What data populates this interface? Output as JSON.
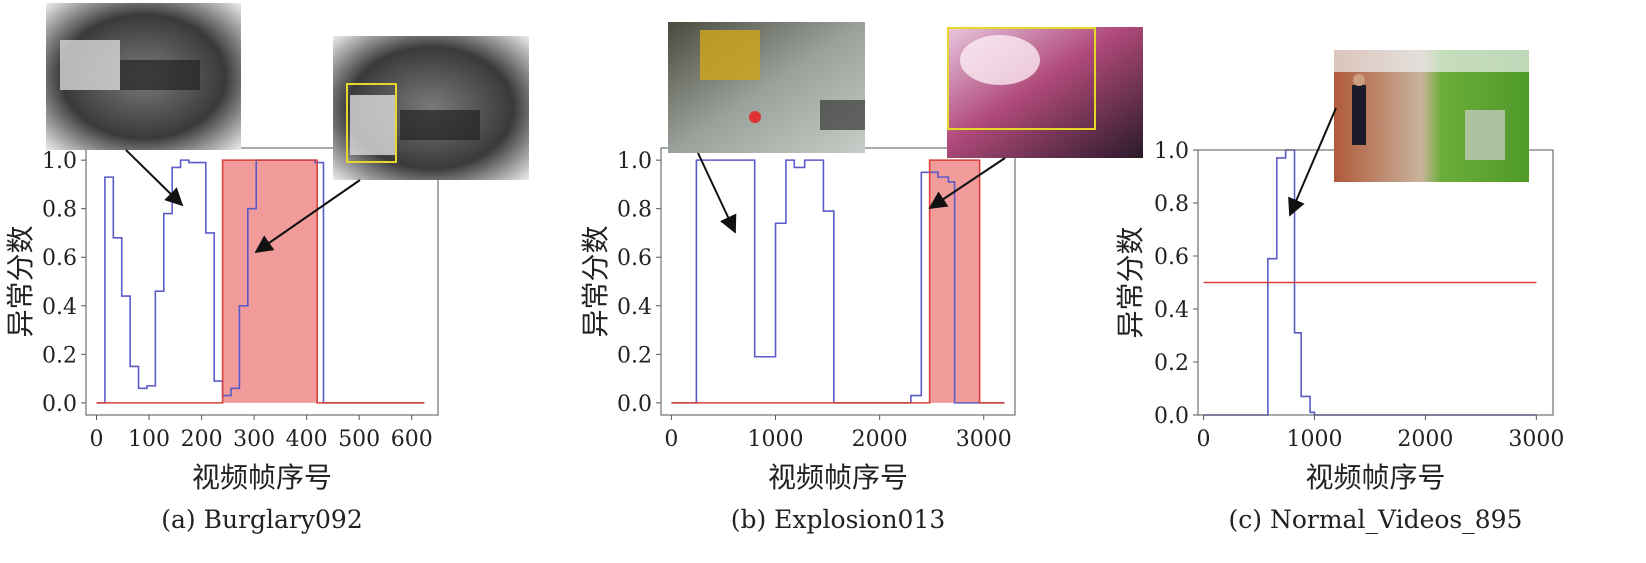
{
  "chart_data": [
    {
      "type": "line",
      "caption": "(a) Burglary092",
      "xlabel": "视频帧序号",
      "ylabel": "异常分数",
      "xlim": [
        -20,
        650
      ],
      "ylim": [
        -0.05,
        1.05
      ],
      "xticks": [
        0,
        100,
        200,
        300,
        400,
        500,
        600
      ],
      "xtick_labels": [
        "0",
        "100",
        "200",
        "300",
        "400",
        "500",
        "600"
      ],
      "yticks": [
        0.0,
        0.2,
        0.4,
        0.6,
        0.8,
        1.0
      ],
      "ytick_labels": [
        "0.0",
        "0.2",
        "0.4",
        "0.6",
        "0.8",
        "1.0"
      ],
      "anomaly_regions": [
        [
          240,
          420
        ]
      ],
      "series": [
        {
          "role": "anomaly score",
          "color": "#5b5bc8",
          "step": true,
          "x": [
            0,
            16,
            32,
            48,
            64,
            80,
            96,
            112,
            128,
            144,
            160,
            176,
            192,
            208,
            224,
            240,
            256,
            272,
            288,
            304,
            320,
            336,
            352,
            368,
            384,
            400,
            416,
            432,
            448,
            464,
            480,
            496,
            512,
            528,
            544,
            560,
            576,
            592,
            608,
            624
          ],
          "y": [
            0.0,
            0.93,
            0.68,
            0.44,
            0.15,
            0.06,
            0.07,
            0.46,
            0.78,
            0.97,
            1.0,
            0.99,
            0.99,
            0.7,
            0.09,
            0.03,
            0.06,
            0.4,
            0.8,
            1.0,
            1.0,
            1.0,
            1.0,
            1.0,
            1.0,
            1.0,
            0.99,
            0.0,
            0.0,
            0.0,
            0.0,
            0.0,
            0.0,
            0.0,
            0.0,
            0.0,
            0.0,
            0.0,
            0.0,
            0.0
          ]
        },
        {
          "role": "ground truth",
          "color": "#d9413b",
          "step": true,
          "x": [
            0,
            240,
            420,
            624
          ],
          "y": [
            0.0,
            1.0,
            0.0,
            0.0
          ]
        }
      ]
    },
    {
      "type": "line",
      "caption": "(b) Explosion013",
      "xlabel": "视频帧序号",
      "ylabel": "异常分数",
      "xlim": [
        -100,
        3300
      ],
      "ylim": [
        -0.05,
        1.05
      ],
      "xticks": [
        0,
        1000,
        2000,
        3000
      ],
      "xtick_labels": [
        "0",
        "1000",
        "2000",
        "3000"
      ],
      "yticks": [
        0.0,
        0.2,
        0.4,
        0.6,
        0.8,
        1.0
      ],
      "ytick_labels": [
        "0.0",
        "0.2",
        "0.4",
        "0.6",
        "0.8",
        "1.0"
      ],
      "anomaly_regions": [
        [
          2480,
          2960
        ]
      ],
      "series": [
        {
          "role": "anomaly score",
          "color": "#5b5bc8",
          "step": true,
          "x": [
            0,
            240,
            800,
            1000,
            1100,
            1180,
            1280,
            1460,
            1560,
            1600,
            2000,
            2300,
            2400,
            2560,
            2660,
            2720,
            2900,
            3200
          ],
          "y": [
            0.0,
            1.0,
            0.19,
            0.74,
            1.0,
            0.97,
            1.0,
            0.79,
            0.0,
            0.0,
            0.0,
            0.03,
            0.95,
            0.93,
            0.91,
            0.0,
            0.0,
            0.0
          ]
        },
        {
          "role": "ground truth",
          "color": "#d9413b",
          "step": true,
          "x": [
            0,
            2480,
            2960,
            3200
          ],
          "y": [
            0.0,
            1.0,
            0.0,
            0.0
          ]
        }
      ]
    },
    {
      "type": "line",
      "caption": "(c) Normal_Videos_895",
      "xlabel": "视频帧序号",
      "ylabel": "异常分数",
      "xlim": [
        -50,
        3150
      ],
      "ylim": [
        0.0,
        1.0
      ],
      "xticks": [
        0,
        1000,
        2000,
        3000
      ],
      "xtick_labels": [
        "0",
        "1000",
        "2000",
        "3000"
      ],
      "yticks": [
        0.0,
        0.2,
        0.4,
        0.6,
        0.8,
        1.0
      ],
      "ytick_labels": [
        "0.0",
        "0.2",
        "0.4",
        "0.6",
        "0.8",
        "1.0"
      ],
      "anomaly_regions": [],
      "series": [
        {
          "role": "anomaly score",
          "color": "#5b5bc8",
          "step": true,
          "x": [
            0,
            580,
            660,
            740,
            820,
            880,
            960,
            1000,
            2000,
            3000
          ],
          "y": [
            0.0,
            0.59,
            0.97,
            1.0,
            0.31,
            0.07,
            0.01,
            0.0,
            0.0,
            0.0
          ]
        },
        {
          "role": "threshold",
          "color": "#d9413b",
          "step": false,
          "x": [
            0,
            3000
          ],
          "y": [
            0.5,
            0.5
          ]
        }
      ]
    }
  ],
  "thumbnails": [
    {
      "panel": 0,
      "scene": "grayscale surveillance room",
      "highlight_box": false
    },
    {
      "panel": 0,
      "scene": "grayscale surveillance room",
      "highlight_box": true
    },
    {
      "panel": 1,
      "scene": "fuel station truck",
      "highlight_box": false
    },
    {
      "panel": 1,
      "scene": "explosion fire",
      "highlight_box": true
    },
    {
      "panel": 2,
      "scene": "house porch lawn",
      "highlight_box": false
    }
  ],
  "colors": {
    "score": "#5b5bc8",
    "truth": "#d9413b",
    "region": "#f08a8a",
    "box": "#e6d82a"
  }
}
